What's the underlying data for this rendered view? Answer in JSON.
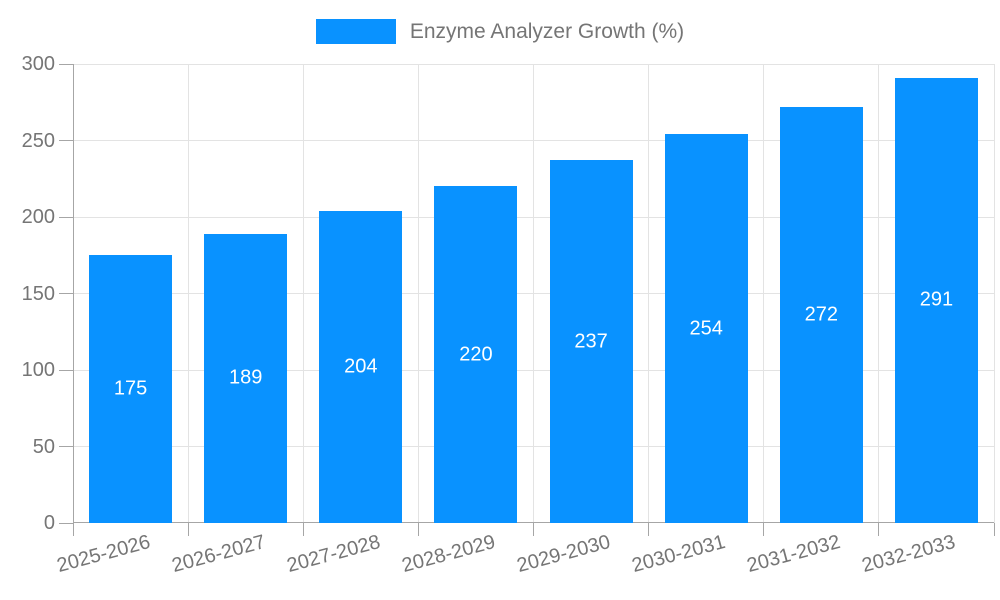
{
  "legend": {
    "label": "Enzyme Analyzer Growth (%)"
  },
  "chart_data": {
    "type": "bar",
    "title": "Enzyme Analyzer Growth (%)",
    "categories": [
      "2025-2026",
      "2026-2027",
      "2027-2028",
      "2028-2029",
      "2029-2030",
      "2030-2031",
      "2031-2032",
      "2032-2033"
    ],
    "series": [
      {
        "name": "Enzyme Analyzer Growth (%)",
        "values": [
          175,
          189,
          204,
          220,
          237,
          254,
          272,
          291
        ]
      }
    ],
    "value_labels_shown": true,
    "xlabel": "",
    "ylabel": "",
    "ylim": [
      0,
      300
    ],
    "yticks": [
      0,
      50,
      100,
      150,
      200,
      250,
      300
    ],
    "grid": true,
    "legend_position": "top-center",
    "colors": {
      "bar": "#0992ff",
      "value_label": "#ffffff",
      "text": "#757575",
      "grid_line": "#e3e3e3",
      "axis_line": "#a6a6a6"
    }
  }
}
